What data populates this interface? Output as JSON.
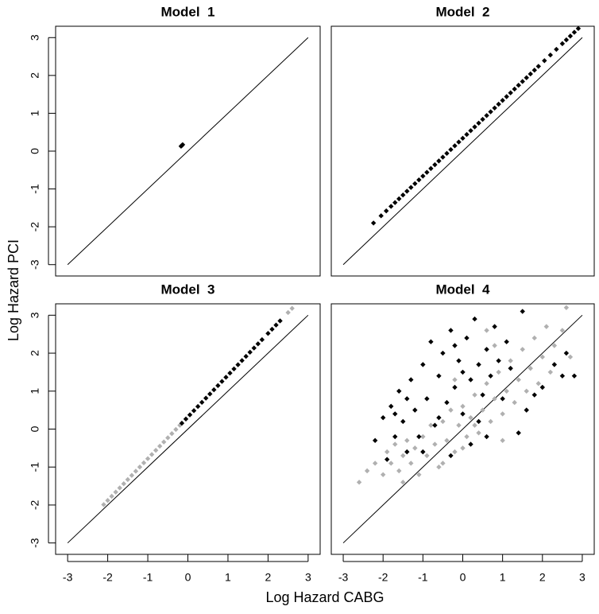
{
  "xlabel": "Log Hazard CABG",
  "ylabel": "Log Hazard PCI",
  "chart_data": [
    {
      "type": "scatter",
      "title": "Model  1",
      "xlim": [
        -3.3,
        3.3
      ],
      "ylim": [
        -3.3,
        3.3
      ],
      "yticks": [
        -3,
        -2,
        -1,
        0,
        1,
        2,
        3
      ],
      "diagonal": [
        -3,
        3
      ],
      "series": [
        {
          "color": "#000000",
          "x": [
            -0.17,
            -0.15,
            -0.13
          ],
          "values": [
            0.13,
            0.15,
            0.17
          ]
        }
      ]
    },
    {
      "type": "scatter",
      "title": "Model  2",
      "xlim": [
        -3.3,
        3.3
      ],
      "ylim": [
        -3.3,
        3.3
      ],
      "diagonal": [
        -3,
        3
      ],
      "series": [
        {
          "color": "#000000",
          "x": [
            -2.24,
            -2.05,
            -1.92,
            -1.8,
            -1.7,
            -1.6,
            -1.5,
            -1.4,
            -1.3,
            -1.2,
            -1.1,
            -1.0,
            -0.9,
            -0.8,
            -0.7,
            -0.6,
            -0.5,
            -0.4,
            -0.3,
            -0.2,
            -0.1,
            0,
            0.1,
            0.2,
            0.3,
            0.4,
            0.5,
            0.6,
            0.7,
            0.8,
            0.9,
            1.0,
            1.1,
            1.2,
            1.3,
            1.4,
            1.5,
            1.6,
            1.7,
            1.8,
            1.9,
            2.05,
            2.2,
            2.35,
            2.5,
            2.6,
            2.7,
            2.8,
            2.9
          ],
          "values": [
            -1.9,
            -1.71,
            -1.58,
            -1.46,
            -1.36,
            -1.26,
            -1.16,
            -1.06,
            -0.96,
            -0.86,
            -0.76,
            -0.66,
            -0.56,
            -0.46,
            -0.36,
            -0.26,
            -0.16,
            -0.06,
            0.04,
            0.14,
            0.24,
            0.34,
            0.44,
            0.54,
            0.64,
            0.74,
            0.84,
            0.94,
            1.04,
            1.14,
            1.24,
            1.34,
            1.44,
            1.54,
            1.64,
            1.74,
            1.84,
            1.94,
            2.04,
            2.14,
            2.24,
            2.39,
            2.54,
            2.69,
            2.84,
            2.94,
            3.04,
            3.14,
            3.24
          ]
        }
      ]
    },
    {
      "type": "scatter",
      "title": "Model  3",
      "xlim": [
        -3.3,
        3.3
      ],
      "ylim": [
        -3.3,
        3.3
      ],
      "xticks": [
        -3,
        -2,
        -1,
        0,
        1,
        2,
        3
      ],
      "yticks": [
        -3,
        -2,
        -1,
        0,
        1,
        2,
        3
      ],
      "diagonal": [
        -3,
        3
      ],
      "series": [
        {
          "color": "#b0b0b0",
          "x": [
            -2.1,
            -2.0,
            -1.9,
            -1.8,
            -1.7,
            -1.6,
            -1.5,
            -1.4,
            -1.3,
            -1.2,
            -1.1,
            -1.0,
            -0.9,
            -0.8,
            -0.7,
            -0.6,
            -0.5,
            -0.4,
            -0.3,
            -0.2,
            2.5,
            2.6
          ],
          "values": [
            -1.99,
            -1.88,
            -1.77,
            -1.66,
            -1.55,
            -1.44,
            -1.33,
            -1.22,
            -1.11,
            -1.0,
            -0.89,
            -0.78,
            -0.67,
            -0.56,
            -0.45,
            -0.34,
            -0.23,
            -0.12,
            -0.01,
            0.1,
            3.07,
            3.18
          ]
        },
        {
          "color": "#000000",
          "x": [
            -0.15,
            -0.05,
            0.05,
            0.15,
            0.25,
            0.35,
            0.45,
            0.55,
            0.65,
            0.75,
            0.85,
            0.95,
            1.05,
            1.15,
            1.25,
            1.35,
            1.45,
            1.55,
            1.65,
            1.75,
            1.85,
            2.0,
            2.1,
            2.2,
            2.3
          ],
          "values": [
            0.155,
            0.265,
            0.375,
            0.485,
            0.595,
            0.705,
            0.815,
            0.925,
            1.035,
            1.145,
            1.255,
            1.365,
            1.475,
            1.585,
            1.695,
            1.805,
            1.915,
            2.025,
            2.135,
            2.245,
            2.355,
            2.52,
            2.63,
            2.74,
            2.85
          ]
        }
      ]
    },
    {
      "type": "scatter",
      "title": "Model  4",
      "xlim": [
        -3.3,
        3.3
      ],
      "ylim": [
        -3.3,
        3.3
      ],
      "xticks": [
        -3,
        -2,
        -1,
        0,
        1,
        2,
        3
      ],
      "diagonal": [
        -3,
        3
      ],
      "series": [
        {
          "color": "#b0b0b0",
          "x": [
            -2.6,
            -2.4,
            -2.2,
            -2.0,
            -1.9,
            -1.8,
            -1.7,
            -1.6,
            -1.5,
            -1.4,
            -1.3,
            -1.2,
            -1.1,
            -1.0,
            -0.9,
            -0.8,
            -0.7,
            -0.6,
            -0.5,
            -0.4,
            -0.3,
            -0.2,
            -0.1,
            0,
            0.1,
            0.2,
            0.3,
            0.4,
            0.5,
            0.6,
            0.7,
            0.8,
            0.9,
            1.0,
            1.1,
            1.2,
            1.3,
            1.4,
            1.5,
            1.6,
            1.7,
            1.8,
            1.9,
            2.0,
            2.1,
            2.2,
            2.3,
            2.5,
            2.6,
            2.7,
            -0.5,
            0.0,
            0.3,
            -1.5,
            1.0,
            0.6,
            -0.2,
            0.8
          ],
          "values": [
            -1.4,
            -1.1,
            -0.9,
            -1.2,
            -0.6,
            -0.9,
            -0.4,
            -1.1,
            -0.7,
            -0.3,
            -0.9,
            -0.5,
            -1.2,
            -0.2,
            -0.7,
            0.1,
            -0.4,
            -1.0,
            0.2,
            -0.3,
            0.5,
            -0.6,
            0.1,
            0.6,
            -0.2,
            0.3,
            0.9,
            -0.1,
            0.5,
            1.2,
            0.2,
            0.8,
            1.5,
            0.4,
            1.0,
            1.8,
            0.7,
            1.3,
            2.1,
            1.0,
            1.6,
            2.4,
            1.2,
            1.9,
            2.7,
            1.5,
            2.2,
            2.6,
            3.2,
            1.9,
            -0.9,
            -0.5,
            0.1,
            -1.4,
            -0.3,
            2.6,
            1.3,
            2.2
          ]
        },
        {
          "color": "#000000",
          "x": [
            -2.2,
            -2.0,
            -1.9,
            -1.8,
            -1.7,
            -1.6,
            -1.5,
            -1.4,
            -1.3,
            -1.2,
            -1.1,
            -1.0,
            -0.9,
            -0.8,
            -0.7,
            -0.6,
            -0.5,
            -0.4,
            -0.3,
            -0.2,
            -0.1,
            0,
            0.1,
            0.2,
            0.3,
            0.4,
            0.5,
            0.6,
            0.7,
            0.8,
            0.9,
            1.0,
            1.1,
            1.2,
            1.5,
            1.4,
            1.6,
            1.8,
            2.0,
            2.3,
            2.5,
            2.8,
            2.6,
            0.2,
            -0.3,
            0.6,
            -1.0,
            -1.4,
            -0.6,
            0.0,
            -0.2,
            0.4,
            -1.7
          ],
          "values": [
            -0.3,
            0.3,
            -0.8,
            0.6,
            -0.2,
            1.0,
            0.2,
            -0.6,
            1.3,
            0.5,
            -0.2,
            1.7,
            0.8,
            2.3,
            0.1,
            1.4,
            2.0,
            0.7,
            2.6,
            1.1,
            1.8,
            0.4,
            2.4,
            1.3,
            2.9,
            1.7,
            0.9,
            2.1,
            1.4,
            2.7,
            1.8,
            0.8,
            2.3,
            1.6,
            3.1,
            -0.1,
            0.5,
            0.9,
            1.1,
            1.7,
            1.4,
            1.4,
            2.0,
            -0.4,
            -0.7,
            -0.2,
            -0.6,
            0.8,
            0.3,
            1.5,
            2.2,
            0.2,
            0.4
          ]
        }
      ]
    }
  ]
}
